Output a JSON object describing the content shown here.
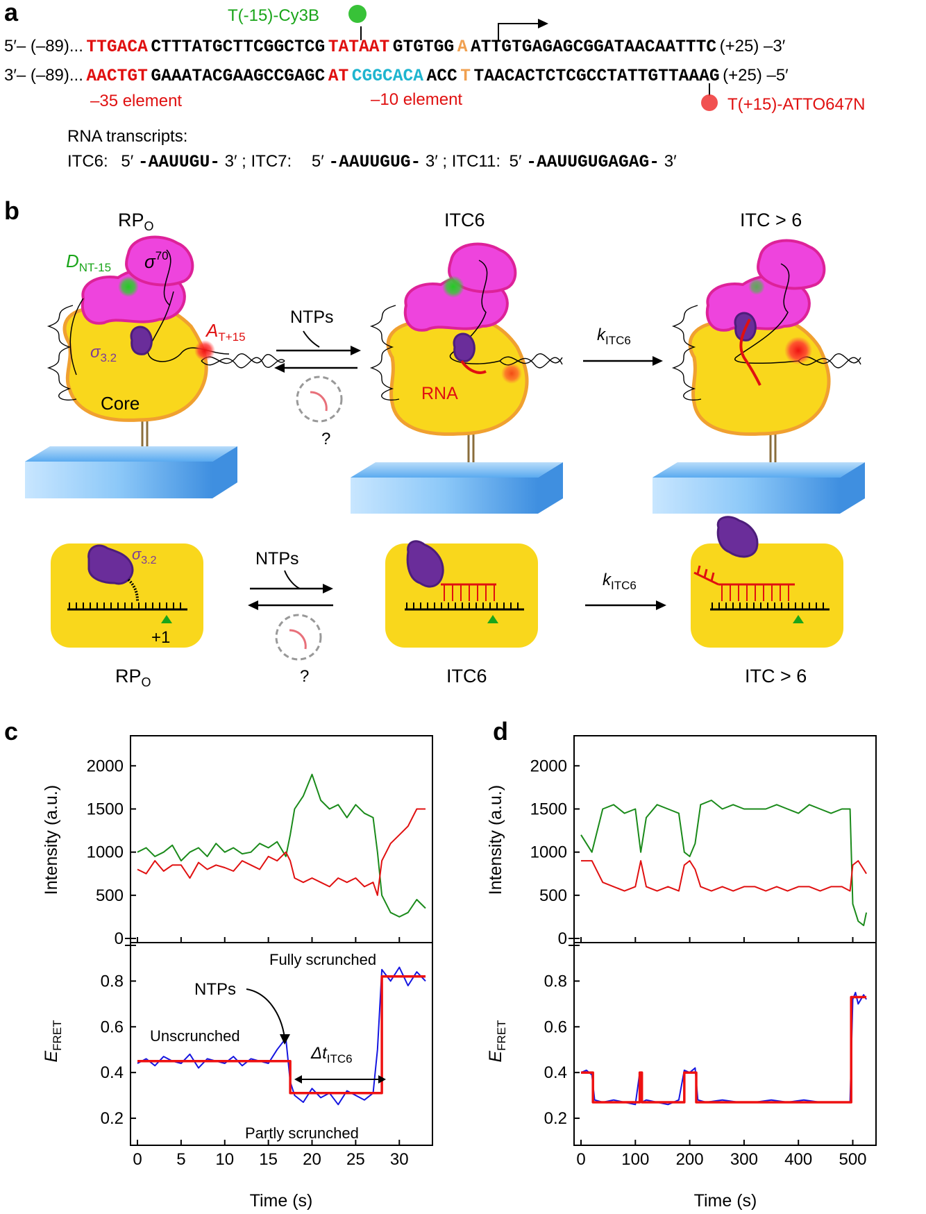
{
  "panels": {
    "a": {
      "label": "a",
      "cy3b_label": "T(-15)-Cy3B",
      "atto_label": "T(+15)-ATTO647N",
      "top_strand": {
        "prefix": "5′– (–89)...",
        "s1": "TTGACA",
        "s2": "CTTTATGCTTCGGCTCG",
        "s3": "TATAAT",
        "s4": "GTGTGG",
        "s5": "A",
        "s6": "ATTGTGAGAGCGGATAACAATTTC",
        "suffix": "(+25) –3′"
      },
      "bottom_strand": {
        "prefix": "3′– (–89)...",
        "s1": "AACTGT",
        "s2": "GAAATACGAAGCCGAGC",
        "s3": "AT",
        "s4": "CGGCACA",
        "s5": "ACC",
        "s6": "T",
        "s7": "TAACACTCTCGCCTATTGTTAAAG",
        "suffix": "(+25) –5′"
      },
      "element_35": "–35 element",
      "element_10": "–10 element",
      "rna_title": "RNA transcripts:",
      "itc6_label": "ITC6:",
      "itc6_p5": "5′",
      "itc6_seq": "-AAUUGU-",
      "itc6_p3": "3′ ;",
      "itc7_label": "ITC7:",
      "itc7_p5": "5′",
      "itc7_seq": "-AAUUGUG-",
      "itc7_p3": "3′ ;",
      "itc11_label": "ITC11:",
      "itc11_p5": "5′",
      "itc11_seq": "-AAUUGUGAGAG-",
      "itc11_p3": "3′"
    },
    "b": {
      "label": "b",
      "titles": [
        "RP",
        "ITC6",
        "ITC > 6"
      ],
      "title_sub_o": "O",
      "d_label": "D",
      "d_sub": "NT-15",
      "sigma": "σ",
      "sigma_sup": "70",
      "a_label": "A",
      "a_sub": "T+15",
      "sigma32": "σ",
      "sigma32_sub": "3.2",
      "core": "Core",
      "rna": "RNA",
      "ntps": "NTPs",
      "question": "?",
      "k": "k",
      "k_sub": "ITC6",
      "plus1": "+1",
      "bottom_titles": [
        "RP",
        "ITC6",
        "ITC > 6"
      ]
    },
    "c": {
      "label": "c",
      "annotations": {
        "fully": "Fully scrunched",
        "ntps": "NTPs",
        "unscrunched": "Unscrunched",
        "partly": "Partly scrunched",
        "dt": "Δt",
        "dt_sub": "ITC6"
      }
    },
    "d": {
      "label": "d"
    }
  },
  "chart_data": [
    {
      "id": "c-intensity",
      "type": "line",
      "xlabel": "Time (s)",
      "ylabel": "Intensity (a.u.)",
      "xlim": [
        0,
        33
      ],
      "ylim": [
        0,
        2300
      ],
      "yticks": [
        0,
        500,
        1000,
        1500,
        2000
      ],
      "xticks": [
        0,
        5,
        10,
        15,
        20,
        25,
        30
      ],
      "series": [
        {
          "color": "#1a8a1a",
          "x": [
            0,
            1,
            2,
            3,
            4,
            5,
            6,
            7,
            8,
            9,
            10,
            11,
            12,
            13,
            14,
            15,
            16,
            17,
            17.5,
            18,
            19,
            20,
            21,
            22,
            23,
            24,
            25,
            26,
            27,
            27.5,
            28,
            29,
            30,
            31,
            32,
            33
          ],
          "y": [
            1000,
            1050,
            950,
            1000,
            1080,
            900,
            1000,
            1050,
            950,
            1100,
            1000,
            1050,
            980,
            1000,
            1100,
            1050,
            1120,
            950,
            1200,
            1500,
            1650,
            1900,
            1600,
            1500,
            1550,
            1400,
            1550,
            1450,
            1400,
            1000,
            500,
            300,
            250,
            300,
            450,
            350
          ]
        },
        {
          "color": "#e01010",
          "x": [
            0,
            1,
            2,
            3,
            4,
            5,
            6,
            7,
            8,
            9,
            10,
            11,
            12,
            13,
            14,
            15,
            16,
            17,
            17.5,
            18,
            19,
            20,
            21,
            22,
            23,
            24,
            25,
            26,
            27,
            27.5,
            28,
            29,
            30,
            31,
            32,
            33
          ],
          "y": [
            800,
            750,
            900,
            780,
            850,
            850,
            700,
            880,
            800,
            850,
            820,
            780,
            900,
            850,
            800,
            950,
            900,
            1000,
            900,
            700,
            650,
            700,
            650,
            600,
            700,
            650,
            700,
            600,
            650,
            500,
            900,
            1100,
            1200,
            1300,
            1500,
            1500
          ]
        }
      ]
    },
    {
      "id": "c-efret",
      "type": "line",
      "xlabel": "Time (s)",
      "ylabel": "E FRET",
      "xlim": [
        0,
        33
      ],
      "ylim": [
        0.1,
        0.95
      ],
      "yticks": [
        0.2,
        0.4,
        0.6,
        0.8
      ],
      "xticks": [
        0,
        5,
        10,
        15,
        20,
        25,
        30
      ],
      "series": [
        {
          "color": "#1515e0",
          "x": [
            0,
            1,
            2,
            3,
            4,
            5,
            6,
            7,
            8,
            9,
            10,
            11,
            12,
            13,
            14,
            15,
            16,
            17,
            17.5,
            18,
            19,
            20,
            21,
            22,
            23,
            24,
            25,
            26,
            27,
            27.5,
            28,
            29,
            30,
            31,
            32,
            33
          ],
          "y": [
            0.44,
            0.46,
            0.43,
            0.47,
            0.45,
            0.44,
            0.48,
            0.42,
            0.46,
            0.45,
            0.44,
            0.47,
            0.43,
            0.46,
            0.45,
            0.44,
            0.5,
            0.55,
            0.36,
            0.3,
            0.27,
            0.33,
            0.29,
            0.31,
            0.26,
            0.32,
            0.3,
            0.28,
            0.31,
            0.5,
            0.85,
            0.8,
            0.86,
            0.78,
            0.84,
            0.8
          ]
        },
        {
          "color": "#ee1111",
          "step": true,
          "x": [
            0,
            17.5,
            17.5,
            28,
            28,
            33
          ],
          "y": [
            0.45,
            0.45,
            0.31,
            0.31,
            0.82,
            0.82
          ]
        }
      ]
    },
    {
      "id": "d-intensity",
      "type": "line",
      "xlabel": "Time (s)",
      "ylabel": "Intensity (a.u.)",
      "xlim": [
        0,
        530
      ],
      "ylim": [
        0,
        2300
      ],
      "yticks": [
        0,
        500,
        1000,
        1500,
        2000
      ],
      "xticks": [
        0,
        100,
        200,
        300,
        400,
        500
      ],
      "series": [
        {
          "color": "#1a8a1a",
          "x": [
            0,
            20,
            40,
            60,
            80,
            100,
            110,
            120,
            140,
            160,
            180,
            190,
            200,
            210,
            220,
            240,
            260,
            280,
            300,
            320,
            340,
            360,
            380,
            400,
            420,
            440,
            460,
            480,
            495,
            500,
            510,
            520,
            525
          ],
          "y": [
            1200,
            1000,
            1500,
            1550,
            1450,
            1500,
            1000,
            1400,
            1550,
            1500,
            1450,
            1000,
            950,
            1100,
            1550,
            1600,
            1500,
            1550,
            1500,
            1500,
            1500,
            1550,
            1500,
            1450,
            1550,
            1500,
            1450,
            1500,
            1500,
            400,
            200,
            150,
            300
          ]
        },
        {
          "color": "#e01010",
          "x": [
            0,
            20,
            40,
            60,
            80,
            100,
            110,
            120,
            140,
            160,
            180,
            190,
            200,
            210,
            220,
            240,
            260,
            280,
            300,
            320,
            340,
            360,
            380,
            400,
            420,
            440,
            460,
            480,
            495,
            500,
            510,
            520,
            525
          ],
          "y": [
            900,
            900,
            650,
            600,
            550,
            600,
            900,
            600,
            550,
            600,
            550,
            850,
            900,
            800,
            600,
            550,
            600,
            550,
            600,
            600,
            550,
            600,
            550,
            600,
            600,
            550,
            600,
            600,
            550,
            850,
            900,
            800,
            750
          ]
        }
      ]
    },
    {
      "id": "d-efret",
      "type": "line",
      "xlabel": "Time (s)",
      "ylabel": "E FRET",
      "xlim": [
        0,
        530
      ],
      "ylim": [
        0.1,
        0.95
      ],
      "yticks": [
        0.2,
        0.4,
        0.6,
        0.8
      ],
      "xticks": [
        0,
        100,
        200,
        300,
        400,
        500
      ],
      "series": [
        {
          "color": "#1515e0",
          "x": [
            0,
            10,
            20,
            25,
            40,
            60,
            80,
            100,
            108,
            112,
            120,
            140,
            160,
            180,
            190,
            200,
            210,
            215,
            230,
            260,
            290,
            320,
            350,
            380,
            410,
            440,
            470,
            495,
            500,
            505,
            510,
            520,
            525
          ],
          "y": [
            0.4,
            0.41,
            0.39,
            0.28,
            0.27,
            0.28,
            0.27,
            0.26,
            0.4,
            0.27,
            0.28,
            0.27,
            0.26,
            0.28,
            0.41,
            0.4,
            0.42,
            0.28,
            0.27,
            0.28,
            0.27,
            0.27,
            0.28,
            0.27,
            0.28,
            0.27,
            0.27,
            0.27,
            0.72,
            0.75,
            0.7,
            0.74,
            0.72
          ]
        },
        {
          "color": "#ee1111",
          "step": true,
          "x": [
            0,
            22,
            22,
            108,
            108,
            112,
            112,
            190,
            190,
            212,
            212,
            497,
            497,
            525
          ],
          "y": [
            0.4,
            0.4,
            0.27,
            0.27,
            0.4,
            0.4,
            0.27,
            0.27,
            0.4,
            0.4,
            0.27,
            0.27,
            0.73,
            0.73
          ]
        }
      ]
    }
  ]
}
